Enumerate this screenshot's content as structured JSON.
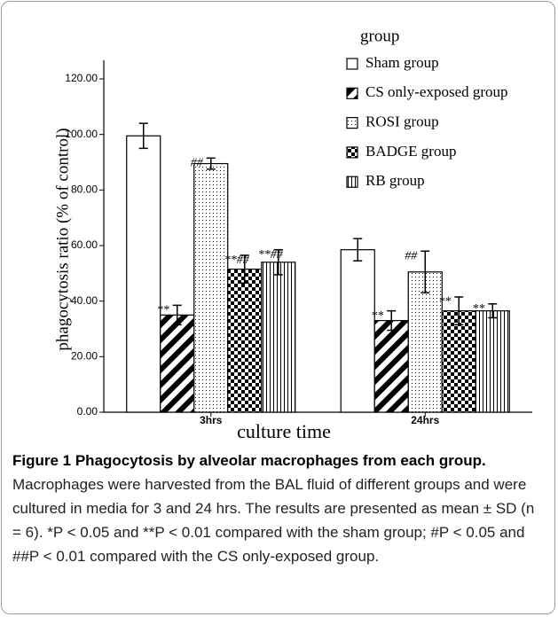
{
  "chart_data": {
    "type": "bar",
    "xlabel": "culture time",
    "ylabel": "phagocytosis ratio (% of control)",
    "legend_title": "group",
    "categories": [
      "3hrs",
      "24hrs"
    ],
    "series": [
      {
        "name": "Sham group",
        "color": "#000000",
        "pattern": "none",
        "values": [
          99.5,
          58.5
        ],
        "errors": [
          4.5,
          4
        ]
      },
      {
        "name": "CS only-exposed group",
        "color": "#000000",
        "pattern": "diagonal",
        "values": [
          35,
          33
        ],
        "errors": [
          3.5,
          3.5
        ],
        "annotations": [
          "**",
          "**"
        ]
      },
      {
        "name": "ROSI group",
        "color": "#000000",
        "pattern": "dots",
        "values": [
          89.5,
          50.5
        ],
        "errors": [
          2,
          7.5
        ],
        "annotations": [
          "##",
          "##"
        ]
      },
      {
        "name": "BADGE group",
        "color": "#000000",
        "pattern": "checker",
        "values": [
          51.5,
          36.5
        ],
        "errors": [
          5,
          5
        ],
        "annotations": [
          "**##",
          "**"
        ]
      },
      {
        "name": "RB group",
        "color": "#000000",
        "pattern": "vertical",
        "values": [
          54,
          36.5
        ],
        "errors": [
          4.5,
          2.5
        ],
        "annotations": [
          "**##",
          "**"
        ]
      }
    ],
    "ylim": [
      0,
      120
    ],
    "yticks": [
      {
        "value": 0,
        "label": "0.00"
      },
      {
        "value": 20,
        "label": "20.00"
      },
      {
        "value": 40,
        "label": "40.00"
      },
      {
        "value": 60,
        "label": "60.00"
      },
      {
        "value": 80,
        "label": "80.00"
      },
      {
        "value": 100,
        "label": "100.00"
      },
      {
        "value": 120,
        "label": "120.00"
      }
    ],
    "grid": false,
    "legend": "top-right",
    "caption_title": "Figure 1 Phagocytosis by alveolar macrophages from each group.",
    "caption_text": "Macrophages were harvested from the BAL fluid of different groups and were cultured in media for 3 and 24 hrs. The results are presented as mean ± SD (n = 6). *P < 0.05 and **P < 0.01 compared with the sham group; #P < 0.05 and ##P < 0.01 compared with the CS only-exposed group."
  }
}
